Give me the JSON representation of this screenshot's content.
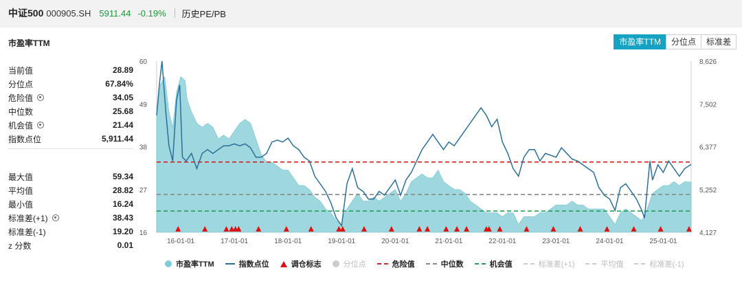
{
  "header": {
    "name": "中证500",
    "code": "000905.SH",
    "price": "5911.44",
    "change": "-0.19%",
    "link": "历史PE/PB"
  },
  "panel": {
    "title": "市盈率TTM",
    "tabs": [
      {
        "label": "市盈率TTM",
        "active": true
      },
      {
        "label": "分位点",
        "active": false
      },
      {
        "label": "标准差",
        "active": false
      }
    ]
  },
  "stats_top": [
    {
      "label": "当前值",
      "value": "28.89",
      "gear": false
    },
    {
      "label": "分位点",
      "value": "67.84%",
      "gear": false
    },
    {
      "label": "危险值",
      "value": "34.05",
      "gear": true
    },
    {
      "label": "中位数",
      "value": "25.68",
      "gear": false
    },
    {
      "label": "机会值",
      "value": "21.44",
      "gear": true
    },
    {
      "label": "指数点位",
      "value": "5,911.44",
      "gear": false
    }
  ],
  "stats_bottom": [
    {
      "label": "最大值",
      "value": "59.34",
      "gear": false
    },
    {
      "label": "平均值",
      "value": "28.82",
      "gear": false
    },
    {
      "label": "最小值",
      "value": "16.24",
      "gear": false
    },
    {
      "label": "标准差(+1)",
      "value": "38.43",
      "gear": true
    },
    {
      "label": "标准差(-1)",
      "value": "19.20",
      "gear": false
    },
    {
      "label": "z 分数",
      "value": "0.01",
      "gear": false
    }
  ],
  "legend": [
    {
      "label": "市盈率TTM",
      "symbol": "dot",
      "color": "#7fcdd6",
      "dim": false
    },
    {
      "label": "指数点位",
      "symbol": "line",
      "color": "#2a6f9a",
      "dim": false
    },
    {
      "label": "调仓标志",
      "symbol": "triangle",
      "color": "#e01010",
      "dim": false
    },
    {
      "label": "分位点",
      "symbol": "dot",
      "color": "#cccccc",
      "dim": true
    },
    {
      "label": "危险值",
      "symbol": "dash",
      "color": "#d42020",
      "dim": false
    },
    {
      "label": "中位数",
      "symbol": "dash",
      "color": "#888888",
      "dim": false
    },
    {
      "label": "机会值",
      "symbol": "dash",
      "color": "#21a05a",
      "dim": false
    },
    {
      "label": "标准差(+1)",
      "symbol": "dash",
      "color": "#cccccc",
      "dim": true
    },
    {
      "label": "平均值",
      "symbol": "dash",
      "color": "#cccccc",
      "dim": true
    },
    {
      "label": "标准差(-1)",
      "symbol": "dash",
      "color": "#cccccc",
      "dim": true
    }
  ],
  "chart_data": {
    "type": "area",
    "x_ticks": [
      "16-01-01",
      "17-01-01",
      "18-01-01",
      "19-01-01",
      "20-01-01",
      "21-01-01",
      "22-01-01",
      "23-01-01",
      "24-01-01",
      "25-01-01"
    ],
    "x_range": [
      2015.55,
      2025.52
    ],
    "y_left": {
      "range": [
        16,
        60
      ],
      "ticks": [
        "60",
        "49",
        "38",
        "27",
        "16"
      ]
    },
    "y_right": {
      "range": [
        4127,
        8626
      ],
      "ticks": [
        "8,626",
        "7,502",
        "6,377",
        "5,252",
        "4,127"
      ]
    },
    "lines": {
      "danger": 34.05,
      "median": 25.68,
      "opportunity": 21.44
    },
    "colors": {
      "pe_fill": "#8dd0d8",
      "index_line": "#2a6f9a",
      "danger": "#d42020",
      "median": "#888888",
      "opportunity": "#21a05a",
      "marker": "#e01010"
    },
    "series": [
      {
        "name": "市盈率TTM",
        "axis": "left",
        "points": [
          [
            2015.55,
            46
          ],
          [
            2015.62,
            54
          ],
          [
            2015.7,
            56
          ],
          [
            2015.78,
            47
          ],
          [
            2015.85,
            43
          ],
          [
            2015.92,
            52
          ],
          [
            2016.0,
            56
          ],
          [
            2016.08,
            55
          ],
          [
            2016.12,
            50
          ],
          [
            2016.2,
            47
          ],
          [
            2016.3,
            44
          ],
          [
            2016.4,
            43
          ],
          [
            2016.5,
            44
          ],
          [
            2016.6,
            43
          ],
          [
            2016.7,
            40
          ],
          [
            2016.8,
            41
          ],
          [
            2016.9,
            40
          ],
          [
            2017.0,
            42
          ],
          [
            2017.1,
            44
          ],
          [
            2017.2,
            45
          ],
          [
            2017.3,
            44
          ],
          [
            2017.4,
            40
          ],
          [
            2017.5,
            36
          ],
          [
            2017.6,
            34
          ],
          [
            2017.7,
            34
          ],
          [
            2017.8,
            33
          ],
          [
            2017.9,
            32
          ],
          [
            2018.0,
            32
          ],
          [
            2018.1,
            30
          ],
          [
            2018.2,
            28
          ],
          [
            2018.3,
            28
          ],
          [
            2018.4,
            27
          ],
          [
            2018.5,
            25
          ],
          [
            2018.6,
            24
          ],
          [
            2018.7,
            22
          ],
          [
            2018.8,
            21
          ],
          [
            2018.9,
            19
          ],
          [
            2019.0,
            18
          ],
          [
            2019.05,
            21
          ],
          [
            2019.2,
            24
          ],
          [
            2019.3,
            26
          ],
          [
            2019.4,
            24
          ],
          [
            2019.5,
            24
          ],
          [
            2019.6,
            25
          ],
          [
            2019.7,
            24
          ],
          [
            2019.8,
            25
          ],
          [
            2019.9,
            26
          ],
          [
            2020.0,
            27
          ],
          [
            2020.1,
            24
          ],
          [
            2020.2,
            26
          ],
          [
            2020.3,
            29
          ],
          [
            2020.4,
            30
          ],
          [
            2020.5,
            31
          ],
          [
            2020.6,
            30
          ],
          [
            2020.7,
            30
          ],
          [
            2020.8,
            32
          ],
          [
            2020.9,
            29
          ],
          [
            2021.0,
            28
          ],
          [
            2021.1,
            27
          ],
          [
            2021.2,
            27
          ],
          [
            2021.3,
            26
          ],
          [
            2021.4,
            24
          ],
          [
            2021.5,
            23
          ],
          [
            2021.6,
            22
          ],
          [
            2021.7,
            21
          ],
          [
            2021.8,
            21
          ],
          [
            2021.9,
            21
          ],
          [
            2022.0,
            20
          ],
          [
            2022.1,
            21
          ],
          [
            2022.2,
            21
          ],
          [
            2022.3,
            18
          ],
          [
            2022.4,
            20
          ],
          [
            2022.5,
            20
          ],
          [
            2022.6,
            20
          ],
          [
            2022.7,
            21
          ],
          [
            2022.8,
            21
          ],
          [
            2022.9,
            22
          ],
          [
            2023.0,
            23
          ],
          [
            2023.1,
            23
          ],
          [
            2023.2,
            23
          ],
          [
            2023.3,
            24
          ],
          [
            2023.4,
            23
          ],
          [
            2023.5,
            23
          ],
          [
            2023.6,
            22
          ],
          [
            2023.7,
            22
          ],
          [
            2023.8,
            22
          ],
          [
            2023.9,
            22
          ],
          [
            2024.0,
            20
          ],
          [
            2024.1,
            18
          ],
          [
            2024.2,
            21
          ],
          [
            2024.3,
            22
          ],
          [
            2024.4,
            21
          ],
          [
            2024.5,
            20
          ],
          [
            2024.6,
            19
          ],
          [
            2024.7,
            22
          ],
          [
            2024.8,
            26
          ],
          [
            2024.9,
            27
          ],
          [
            2025.0,
            28
          ],
          [
            2025.1,
            28
          ],
          [
            2025.2,
            29
          ],
          [
            2025.3,
            28
          ],
          [
            2025.4,
            29
          ],
          [
            2025.52,
            28.9
          ]
        ]
      },
      {
        "name": "指数点位",
        "axis": "right",
        "points": [
          [
            2015.55,
            7200
          ],
          [
            2015.6,
            8000
          ],
          [
            2015.65,
            8626
          ],
          [
            2015.72,
            7300
          ],
          [
            2015.78,
            6400
          ],
          [
            2015.85,
            6000
          ],
          [
            2015.92,
            7600
          ],
          [
            2015.98,
            8000
          ],
          [
            2016.03,
            6100
          ],
          [
            2016.1,
            6000
          ],
          [
            2016.2,
            6200
          ],
          [
            2016.3,
            5800
          ],
          [
            2016.4,
            6200
          ],
          [
            2016.5,
            6300
          ],
          [
            2016.6,
            6200
          ],
          [
            2016.7,
            6300
          ],
          [
            2016.8,
            6400
          ],
          [
            2016.9,
            6400
          ],
          [
            2017.0,
            6450
          ],
          [
            2017.1,
            6400
          ],
          [
            2017.2,
            6450
          ],
          [
            2017.3,
            6350
          ],
          [
            2017.4,
            6100
          ],
          [
            2017.5,
            6100
          ],
          [
            2017.6,
            6200
          ],
          [
            2017.7,
            6500
          ],
          [
            2017.8,
            6550
          ],
          [
            2017.9,
            6500
          ],
          [
            2018.0,
            6600
          ],
          [
            2018.1,
            6400
          ],
          [
            2018.2,
            6300
          ],
          [
            2018.3,
            6100
          ],
          [
            2018.4,
            6000
          ],
          [
            2018.5,
            5600
          ],
          [
            2018.6,
            5400
          ],
          [
            2018.7,
            5200
          ],
          [
            2018.8,
            4900
          ],
          [
            2018.9,
            4500
          ],
          [
            2019.0,
            4300
          ],
          [
            2019.1,
            5400
          ],
          [
            2019.2,
            5800
          ],
          [
            2019.3,
            5300
          ],
          [
            2019.4,
            5200
          ],
          [
            2019.5,
            5000
          ],
          [
            2019.6,
            5000
          ],
          [
            2019.7,
            5200
          ],
          [
            2019.8,
            5100
          ],
          [
            2019.9,
            5300
          ],
          [
            2020.0,
            5500
          ],
          [
            2020.1,
            5100
          ],
          [
            2020.2,
            5500
          ],
          [
            2020.3,
            5700
          ],
          [
            2020.4,
            6000
          ],
          [
            2020.5,
            6300
          ],
          [
            2020.6,
            6500
          ],
          [
            2020.7,
            6700
          ],
          [
            2020.8,
            6500
          ],
          [
            2020.9,
            6300
          ],
          [
            2021.0,
            6500
          ],
          [
            2021.1,
            6400
          ],
          [
            2021.2,
            6600
          ],
          [
            2021.3,
            6800
          ],
          [
            2021.4,
            7000
          ],
          [
            2021.5,
            7200
          ],
          [
            2021.6,
            7400
          ],
          [
            2021.7,
            7200
          ],
          [
            2021.8,
            6900
          ],
          [
            2021.9,
            7100
          ],
          [
            2022.0,
            6500
          ],
          [
            2022.1,
            6200
          ],
          [
            2022.2,
            5800
          ],
          [
            2022.3,
            5600
          ],
          [
            2022.4,
            6100
          ],
          [
            2022.5,
            6300
          ],
          [
            2022.6,
            6300
          ],
          [
            2022.7,
            6000
          ],
          [
            2022.8,
            6200
          ],
          [
            2022.9,
            6150
          ],
          [
            2023.0,
            6100
          ],
          [
            2023.1,
            6350
          ],
          [
            2023.2,
            6200
          ],
          [
            2023.3,
            6050
          ],
          [
            2023.4,
            6000
          ],
          [
            2023.5,
            5900
          ],
          [
            2023.6,
            5800
          ],
          [
            2023.7,
            5700
          ],
          [
            2023.8,
            5300
          ],
          [
            2023.9,
            5100
          ],
          [
            2024.0,
            5000
          ],
          [
            2024.1,
            4700
          ],
          [
            2024.2,
            5300
          ],
          [
            2024.3,
            5400
          ],
          [
            2024.4,
            5200
          ],
          [
            2024.5,
            5000
          ],
          [
            2024.6,
            4700
          ],
          [
            2024.65,
            4500
          ],
          [
            2024.75,
            6000
          ],
          [
            2024.8,
            5500
          ],
          [
            2024.9,
            5900
          ],
          [
            2025.0,
            5700
          ],
          [
            2025.1,
            6000
          ],
          [
            2025.2,
            5800
          ],
          [
            2025.3,
            5600
          ],
          [
            2025.4,
            5800
          ],
          [
            2025.52,
            5911.44
          ]
        ]
      }
    ],
    "markers": [
      2015.95,
      2016.45,
      2016.85,
      2016.95,
      2017.02,
      2017.08,
      2017.45,
      2017.97,
      2018.43,
      2018.95,
      2019.02,
      2019.42,
      2019.93,
      2020.45,
      2020.6,
      2020.95,
      2021.15,
      2021.33,
      2021.7,
      2021.75,
      2021.95,
      2022.45,
      2022.95,
      2023.45,
      2023.95,
      2024.45,
      2024.95,
      2025.48
    ]
  }
}
